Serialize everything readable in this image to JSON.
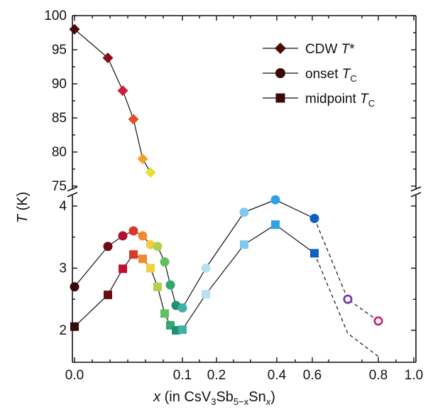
{
  "chart_data": {
    "type": "scatter",
    "xlabel": {
      "main": "x",
      "paren_open": " (in CsV",
      "sub1": "3",
      "mid": "Sb",
      "sub2": "5−x",
      "mid2": "Sn",
      "sub3": "x",
      "paren_close": ")"
    },
    "ylabel": {
      "main": "T",
      "unit": " (K)"
    },
    "x_ticks_major": [
      0.0,
      0.2,
      0.4,
      0.6,
      0.8,
      1.0
    ],
    "x_tick_labels": [
      "0.0",
      "0.1",
      "0.2",
      "0.4",
      "0.6",
      "0.8",
      "1.0"
    ],
    "x_tick_label_positions": [
      0.0,
      0.1,
      0.2,
      0.4,
      0.6,
      0.8,
      1.0
    ],
    "upper_panel": {
      "ylim": [
        75,
        100
      ],
      "y_ticks": [
        75,
        80,
        85,
        90,
        95,
        100
      ]
    },
    "lower_panel": {
      "ylim": [
        1.6,
        4.35
      ],
      "y_ticks": [
        2,
        3,
        4
      ]
    },
    "legend": {
      "placement": "top-right",
      "entries": [
        {
          "marker": "diamond",
          "label": "CDW ",
          "label_italic": "T",
          "label_suffix": "*"
        },
        {
          "marker": "circle",
          "label": "onset ",
          "label_italic": "T",
          "label_sub": "C"
        },
        {
          "marker": "square",
          "label": "midpoint ",
          "label_italic": "T",
          "label_sub": "C"
        }
      ]
    },
    "series": [
      {
        "name": "CDW T*",
        "marker": "diamond",
        "panel": "upper",
        "points": [
          {
            "x": 0.0,
            "y": 98.0,
            "color": "#4a0a0a"
          },
          {
            "x": 0.025,
            "y": 93.8,
            "color": "#8b0a1e"
          },
          {
            "x": 0.035,
            "y": 89.0,
            "color": "#d01c3a"
          },
          {
            "x": 0.043,
            "y": 84.8,
            "color": "#e0502a"
          },
          {
            "x": 0.05,
            "y": 79.0,
            "color": "#f0a030"
          },
          {
            "x": 0.056,
            "y": 77.0,
            "color": "#e8e030"
          }
        ]
      },
      {
        "name": "onset Tc",
        "marker": "circle",
        "panel": "lower",
        "points": [
          {
            "x": 0.0,
            "y": 2.7,
            "color": "#3a0808",
            "open": false
          },
          {
            "x": 0.025,
            "y": 3.35,
            "color": "#6a0c14",
            "open": false
          },
          {
            "x": 0.035,
            "y": 3.52,
            "color": "#b01030",
            "open": false
          },
          {
            "x": 0.043,
            "y": 3.6,
            "color": "#d83a2a",
            "open": false
          },
          {
            "x": 0.05,
            "y": 3.52,
            "color": "#f08a30",
            "open": false
          },
          {
            "x": 0.056,
            "y": 3.38,
            "color": "#f0d040",
            "open": false
          },
          {
            "x": 0.062,
            "y": 3.35,
            "color": "#b0d050",
            "open": false
          },
          {
            "x": 0.068,
            "y": 3.1,
            "color": "#60c060",
            "open": false
          },
          {
            "x": 0.072,
            "y": 2.73,
            "color": "#30a870",
            "open": false
          },
          {
            "x": 0.076,
            "y": 2.4,
            "color": "#209070",
            "open": false
          },
          {
            "x": 0.08,
            "y": 2.36,
            "color": "#40b0a8",
            "open": false
          },
          {
            "x": 0.15,
            "y": 3.0,
            "color": "#b8e0f0",
            "open": false
          },
          {
            "x": 0.25,
            "y": 3.9,
            "color": "#80c8f0",
            "open": false
          },
          {
            "x": 0.35,
            "y": 4.1,
            "color": "#30a0e8",
            "open": false
          },
          {
            "x": 0.5,
            "y": 3.8,
            "color": "#1060c0",
            "open": false
          },
          {
            "x": 0.65,
            "y": 2.5,
            "color": "#7030b0",
            "open": true
          },
          {
            "x": 0.8,
            "y": 2.15,
            "color": "#d01870",
            "open": true
          }
        ]
      },
      {
        "name": "midpoint Tc",
        "marker": "square",
        "panel": "lower",
        "points": [
          {
            "x": 0.0,
            "y": 2.06,
            "color": "#3a0808"
          },
          {
            "x": 0.025,
            "y": 2.57,
            "color": "#6a0c14"
          },
          {
            "x": 0.035,
            "y": 2.99,
            "color": "#c01030"
          },
          {
            "x": 0.043,
            "y": 3.22,
            "color": "#d83a2a"
          },
          {
            "x": 0.05,
            "y": 3.15,
            "color": "#f08a30"
          },
          {
            "x": 0.056,
            "y": 3.0,
            "color": "#f0d040"
          },
          {
            "x": 0.062,
            "y": 2.7,
            "color": "#b0d050"
          },
          {
            "x": 0.068,
            "y": 2.27,
            "color": "#60c060"
          },
          {
            "x": 0.072,
            "y": 2.08,
            "color": "#30a870"
          },
          {
            "x": 0.076,
            "y": 2.0,
            "color": "#209070"
          },
          {
            "x": 0.08,
            "y": 2.01,
            "color": "#40b0a8"
          },
          {
            "x": 0.15,
            "y": 2.58,
            "color": "#b8e0f0"
          },
          {
            "x": 0.25,
            "y": 3.38,
            "color": "#80c8f0"
          },
          {
            "x": 0.35,
            "y": 3.7,
            "color": "#30a0e8"
          },
          {
            "x": 0.5,
            "y": 3.24,
            "color": "#1060c0"
          }
        ]
      }
    ],
    "dashed_onset": [
      {
        "x": 0.5,
        "y": 3.8
      },
      {
        "x": 0.65,
        "y": 2.5
      },
      {
        "x": 0.8,
        "y": 2.15
      }
    ],
    "dashed_midpoint": [
      {
        "x": 0.5,
        "y": 3.24
      },
      {
        "x": 0.65,
        "y": 1.95
      },
      {
        "x": 0.8,
        "y": 1.58
      }
    ]
  }
}
